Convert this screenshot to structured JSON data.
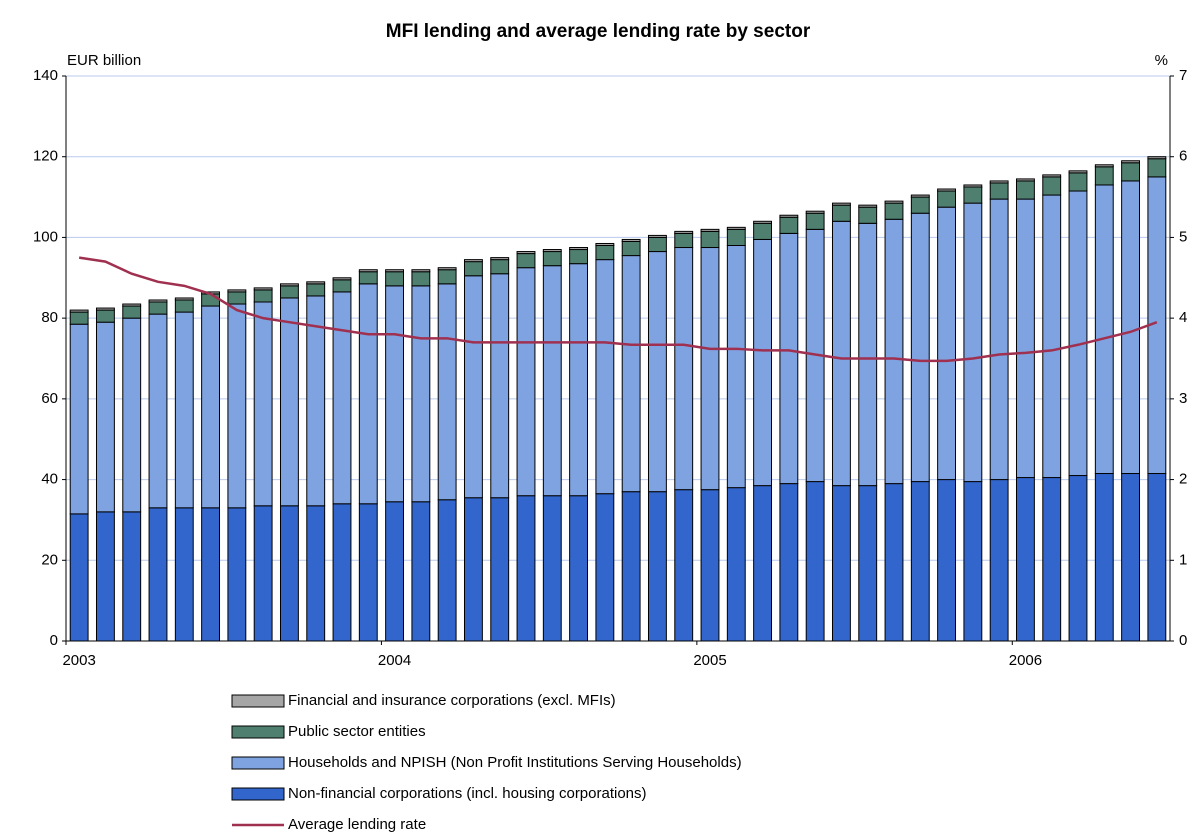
{
  "chart_data": {
    "type": "bar",
    "stacked": true,
    "title": "MFI lending and average lending rate by sector",
    "y_label": "EUR billion",
    "y2_label": "%",
    "categories": [
      "2003",
      null,
      null,
      null,
      null,
      null,
      null,
      null,
      null,
      null,
      null,
      null,
      "2004",
      null,
      null,
      null,
      null,
      null,
      null,
      null,
      null,
      null,
      null,
      null,
      "2005",
      null,
      null,
      null,
      null,
      null,
      null,
      null,
      null,
      null,
      null,
      null,
      "2006",
      null,
      null,
      null,
      null,
      null
    ],
    "ylim": [
      0,
      140
    ],
    "yticks": [
      0,
      20,
      40,
      60,
      80,
      100,
      120,
      140
    ],
    "y2lim": [
      0,
      7
    ],
    "y2ticks": [
      0,
      1,
      2,
      3,
      4,
      5,
      6,
      7
    ],
    "grid": true,
    "series": [
      {
        "name": "Non-financial corporations (incl. housing corporations)",
        "color": "#3366cc",
        "values": [
          31.5,
          32,
          32,
          33,
          33,
          33,
          33,
          33.5,
          33.5,
          33.5,
          34,
          34,
          34.5,
          34.5,
          35,
          35.5,
          35.5,
          36,
          36,
          36,
          36.5,
          37,
          37,
          37.5,
          37.5,
          38,
          38.5,
          39,
          39.5,
          38.5,
          38.5,
          39,
          39.5,
          40,
          39.5,
          40,
          40.5,
          40.5,
          41,
          41.5,
          41.5,
          41.5
        ]
      },
      {
        "name": "Households and NPISH (Non Profit Institutions Serving Households)",
        "color": "#7fa3e0",
        "values": [
          47,
          47,
          48,
          48,
          48.5,
          50,
          50.5,
          50.5,
          51.5,
          52,
          52.5,
          54.5,
          53.5,
          53.5,
          53.5,
          55,
          55.5,
          56.5,
          57,
          57.5,
          58,
          58.5,
          59.5,
          60,
          60,
          60,
          61,
          62,
          62.5,
          65.5,
          65,
          65.5,
          66.5,
          67.5,
          69,
          69.5,
          69,
          70,
          70.5,
          71.5,
          72.5,
          73.5
        ]
      },
      {
        "name": "Public sector entities",
        "color": "#4f7f6f",
        "values": [
          3,
          3,
          3,
          3,
          3,
          3,
          3,
          3,
          3,
          3,
          3,
          3,
          3.5,
          3.5,
          3.5,
          3.5,
          3.5,
          3.5,
          3.5,
          3.5,
          3.5,
          3.5,
          3.5,
          3.5,
          4,
          4,
          4,
          4,
          4,
          4,
          4,
          4,
          4,
          4,
          4,
          4,
          4.5,
          4.5,
          4.5,
          4.5,
          4.5,
          4.5
        ]
      },
      {
        "name": "Financial and insurance corporations (excl. MFIs)",
        "color": "#a6a6a6",
        "values": [
          0.5,
          0.5,
          0.5,
          0.5,
          0.5,
          0.5,
          0.5,
          0.5,
          0.5,
          0.5,
          0.5,
          0.5,
          0.5,
          0.5,
          0.5,
          0.5,
          0.5,
          0.5,
          0.5,
          0.5,
          0.5,
          0.5,
          0.5,
          0.5,
          0.5,
          0.5,
          0.5,
          0.5,
          0.5,
          0.5,
          0.5,
          0.5,
          0.5,
          0.5,
          0.5,
          0.5,
          0.5,
          0.5,
          0.5,
          0.5,
          0.5,
          0.5
        ]
      },
      {
        "name": "Average lending rate",
        "color": "#a0304f",
        "axis": "y2",
        "type": "line",
        "values": [
          4.75,
          4.7,
          4.55,
          4.45,
          4.4,
          4.3,
          4.1,
          4.0,
          3.95,
          3.9,
          3.85,
          3.8,
          3.8,
          3.75,
          3.75,
          3.7,
          3.7,
          3.7,
          3.7,
          3.7,
          3.7,
          3.67,
          3.67,
          3.67,
          3.62,
          3.62,
          3.6,
          3.6,
          3.55,
          3.5,
          3.5,
          3.5,
          3.47,
          3.47,
          3.5,
          3.55,
          3.57,
          3.6,
          3.67,
          3.75,
          3.83,
          3.95
        ]
      }
    ],
    "legend_order": [
      3,
      2,
      1,
      0,
      4
    ]
  }
}
